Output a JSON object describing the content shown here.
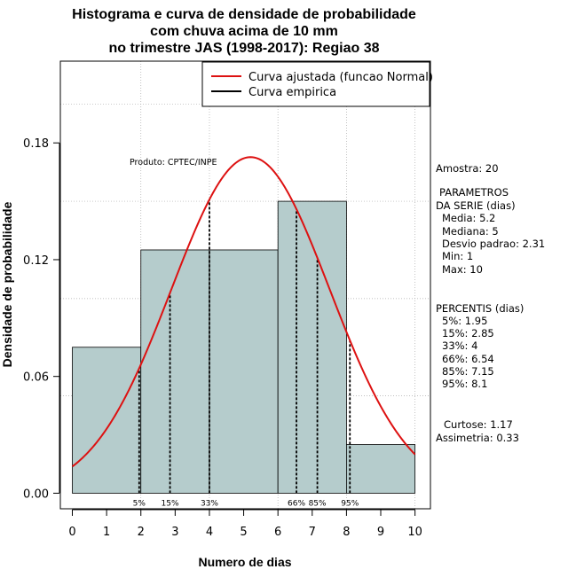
{
  "title_lines": [
    "Histograma e curva de densidade de probabilidade",
    "com chuva acima de 10 mm",
    "no trimestre JAS (1998-2017): Regiao 38"
  ],
  "credit": "Produto: CPTEC/INPE",
  "legend": {
    "fitted": "Curva ajustada (funcao Normal)",
    "empirical": "Curva empirica"
  },
  "colors": {
    "bar_fill": "#b5cccc",
    "fitted_curve": "#dd1111",
    "grid": "#aaaaaa"
  },
  "stats": {
    "amostra": "Amostra: 20",
    "param_header_1": "PARAMETROS",
    "param_header_2": "DA SERIE (dias)",
    "media": "Media: 5.2",
    "mediana": "Mediana: 5",
    "desvio": "Desvio padrao: 2.31",
    "min": "Min: 1",
    "max": "Max: 10",
    "perc_header": "PERCENTIS (dias)",
    "p5": "5%: 1.95",
    "p15": "15%: 2.85",
    "p33": "33%: 4",
    "p66": "66%: 6.54",
    "p85": "85%: 7.15",
    "p95": "95%: 8.1",
    "curtose": "Curtose: 1.17",
    "assimetria": "Assimetria: 0.33"
  },
  "chart_data": {
    "type": "bar",
    "title": "Histograma e curva de densidade de probabilidade com chuva acima de 10 mm no trimestre JAS (1998-2017): Regiao 38",
    "xlabel": "Numero de dias",
    "ylabel": "Densidade de probabilidade",
    "xlim": [
      -0.35,
      10.45
    ],
    "ylim": [
      -0.008,
      0.222
    ],
    "x_ticks": [
      0,
      1,
      2,
      3,
      4,
      5,
      6,
      7,
      8,
      9,
      10
    ],
    "y_ticks": [
      0.0,
      0.06,
      0.12,
      0.18
    ],
    "y_tick_labels": [
      "0.00",
      "0.06",
      "0.12",
      "0.18"
    ],
    "grid": true,
    "legend_position": "top-right",
    "bins": [
      {
        "x0": 0,
        "x1": 2,
        "density": 0.075
      },
      {
        "x0": 2,
        "x1": 4,
        "density": 0.125
      },
      {
        "x0": 4,
        "x1": 6,
        "density": 0.125
      },
      {
        "x0": 6,
        "x1": 8,
        "density": 0.15
      },
      {
        "x0": 8,
        "x1": 10,
        "density": 0.025
      }
    ],
    "normal_fit": {
      "mean": 5.2,
      "sd": 2.31
    },
    "percentiles": [
      {
        "label": "5%",
        "x": 1.95
      },
      {
        "label": "15%",
        "x": 2.85
      },
      {
        "label": "33%",
        "x": 4
      },
      {
        "label": "66%",
        "x": 6.54
      },
      {
        "label": "85%",
        "x": 7.15
      },
      {
        "label": "95%",
        "x": 8.1
      }
    ]
  }
}
